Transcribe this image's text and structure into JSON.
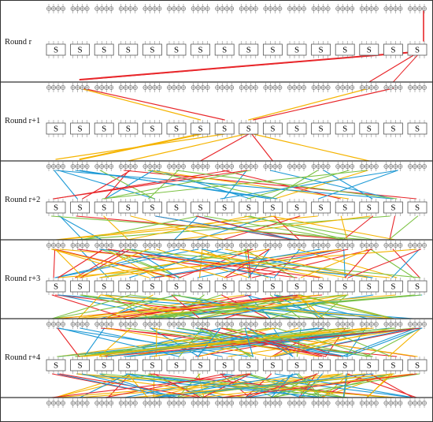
{
  "diagram": {
    "sbox_label": "S",
    "sbox_count": 16,
    "rounds": [
      {
        "label": "Round r"
      },
      {
        "label": "Round r+1"
      },
      {
        "label": "Round r+2"
      },
      {
        "label": "Round r+3"
      },
      {
        "label": "Round r+4"
      }
    ],
    "colors": {
      "red": "#e8262a",
      "orange": "#f5b400",
      "blue": "#1e9ad6",
      "green": "#7cc243",
      "frame": "#333333"
    },
    "trail_density": [
      2,
      8,
      28,
      55,
      70
    ]
  }
}
